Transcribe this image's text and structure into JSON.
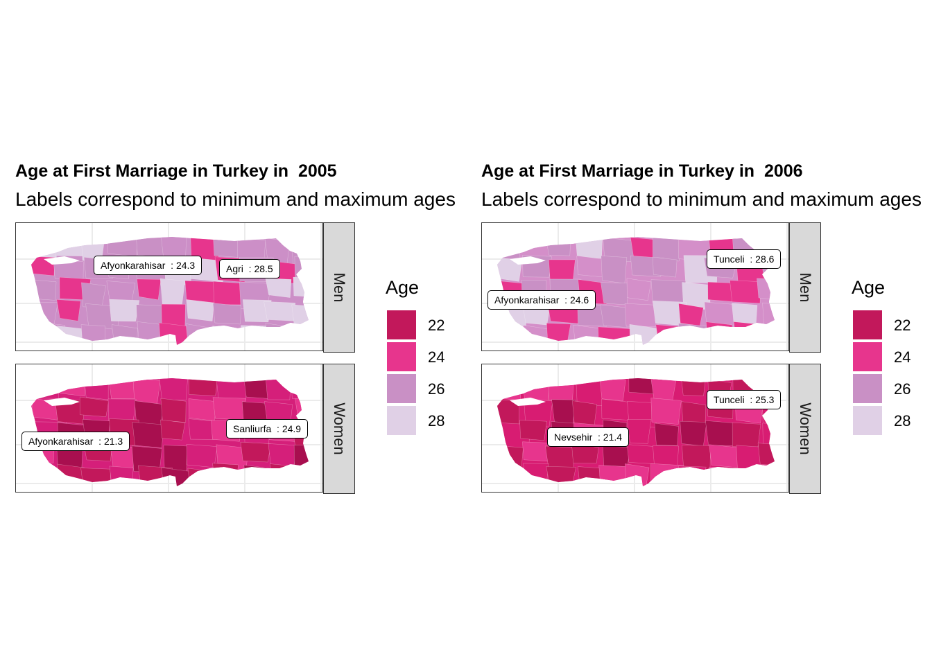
{
  "charts": [
    {
      "title": "Age at First Marriage in Turkey in  2005",
      "subtitle": "Labels correspond to minimum and maximum ages",
      "facets": [
        {
          "strip": "Men",
          "base_color": "#cc8fc7",
          "labels": [
            {
              "province": "Afyonkarahisar",
              "age": 24.3,
              "text": "Afyonkarahisar  : 24.3"
            },
            {
              "province": "Agri",
              "age": 28.5,
              "text": "Agri  : 28.5"
            }
          ]
        },
        {
          "strip": "Women",
          "base_color": "#d51f7a",
          "labels": [
            {
              "province": "Afyonkarahisar",
              "age": 21.3,
              "text": "Afyonkarahisar  : 21.3"
            },
            {
              "province": "Sanliurfa",
              "age": 24.9,
              "text": "Sanliurfa  : 24.9"
            }
          ]
        }
      ],
      "legend": {
        "title": "Age",
        "items": [
          {
            "value": "22",
            "color": "#c2185b"
          },
          {
            "value": "24",
            "color": "#e7358d"
          },
          {
            "value": "26",
            "color": "#c990c5"
          },
          {
            "value": "28",
            "color": "#e0d0e6"
          }
        ]
      }
    },
    {
      "title": "Age at First Marriage in Turkey in  2006",
      "subtitle": "Labels correspond to minimum and maximum ages",
      "facets": [
        {
          "strip": "Men",
          "base_color": "#d48fc9",
          "labels": [
            {
              "province": "Tunceli",
              "age": 28.6,
              "text": "Tunceli  : 28.6"
            },
            {
              "province": "Afyonkarahisar",
              "age": 24.6,
              "text": "Afyonkarahisar  : 24.6"
            }
          ]
        },
        {
          "strip": "Women",
          "base_color": "#d81c72",
          "labels": [
            {
              "province": "Tunceli",
              "age": 25.3,
              "text": "Tunceli  : 25.3"
            },
            {
              "province": "Nevsehir",
              "age": 21.4,
              "text": "Nevsehir  : 21.4"
            }
          ]
        }
      ],
      "legend": {
        "title": "Age",
        "items": [
          {
            "value": "22",
            "color": "#c2185b"
          },
          {
            "value": "24",
            "color": "#e7358d"
          },
          {
            "value": "26",
            "color": "#c990c5"
          },
          {
            "value": "28",
            "color": "#e0d0e6"
          }
        ]
      }
    }
  ]
}
